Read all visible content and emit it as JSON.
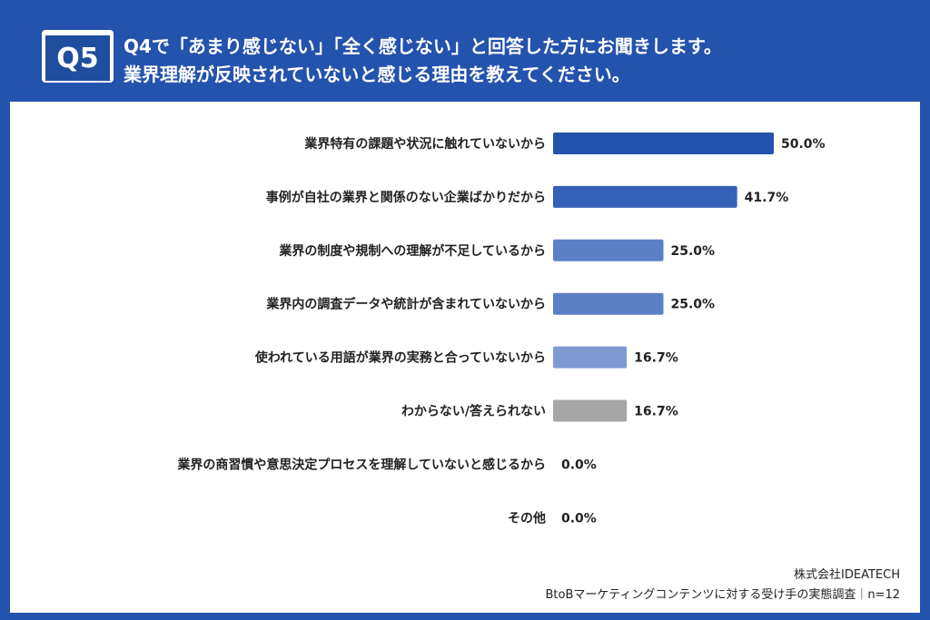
{
  "header": {
    "badge": "Q5",
    "question_line1": "Q4で「あまり感じない」「全く感じない」と回答した方にお聞きします。",
    "question_line2": "業界理解が反映されていないと感じる理由を教えてください。"
  },
  "chart_data": {
    "type": "bar",
    "orientation": "horizontal",
    "unit": "%",
    "categories": [
      "業界特有の課題や状況に触れていないから",
      "事例が自社の業界と関係のない企業ばかりだから",
      "業界の制度や規制への理解が不足しているから",
      "業界内の調査データや統計が含まれていないから",
      "使われている用語が業界の実務と合っていないから",
      "わからない/答えられない",
      "業界の商習慣や意思決定プロセスを理解していないと感じるから",
      "その他"
    ],
    "values": [
      50.0,
      41.7,
      25.0,
      25.0,
      16.7,
      16.7,
      0.0,
      0.0
    ],
    "value_labels": [
      "50.0%",
      "41.7%",
      "25.0%",
      "25.0%",
      "16.7%",
      "16.7%",
      "0.0%",
      "0.0%"
    ],
    "bar_colors": [
      "#2453ad",
      "#3561b8",
      "#5a80c6",
      "#5a80c6",
      "#7f9ad3",
      "#a6a6a6",
      "#7f9ad3",
      "#7f9ad3"
    ],
    "xlim": [
      0,
      100
    ],
    "title": "",
    "xlabel": "",
    "ylabel": ""
  },
  "footer": {
    "company": "株式会社IDEATECH",
    "survey": "BtoBマーケティングコンテンツに対する受け手の実態調査｜n=12"
  },
  "colors": {
    "background": "#2453ad",
    "panel": "#ffffff",
    "text": "#222222"
  }
}
